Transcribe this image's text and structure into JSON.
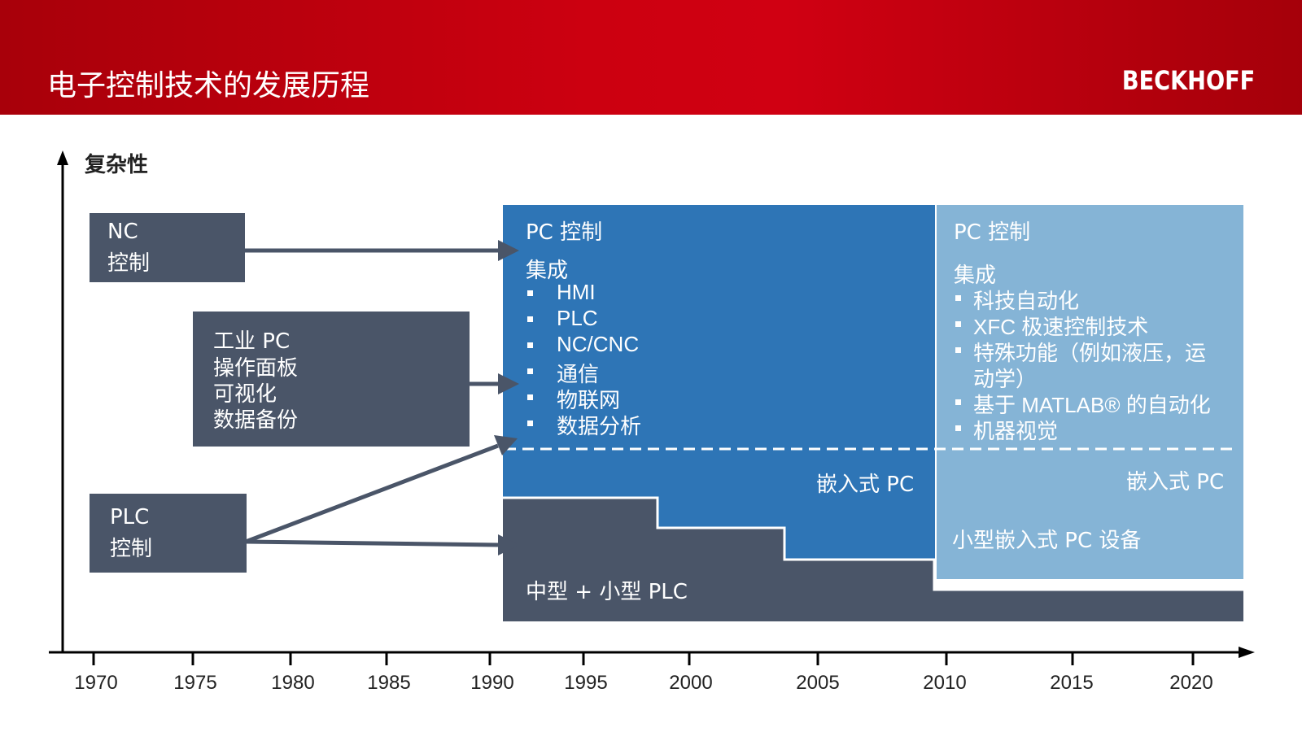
{
  "header": {
    "title": "电子控制技术的发展历程",
    "logo": "BECKHOFF"
  },
  "y_axis_label": "复杂性",
  "x_ticks": [
    "1970",
    "1975",
    "1980",
    "1985",
    "1990",
    "1995",
    "2000",
    "2005",
    "2010",
    "2015",
    "2020"
  ],
  "left_boxes": {
    "nc": [
      "NC",
      "控制"
    ],
    "ipc": [
      "工业 PC",
      "操作面板",
      "可视化",
      "数据备份"
    ],
    "plc": [
      "PLC",
      "控制"
    ]
  },
  "pc_1990": {
    "title": "PC 控制",
    "integration": "集成",
    "items": [
      "HMI",
      "PLC",
      "NC/CNC",
      "通信",
      "物联网",
      "数据分析"
    ],
    "embedded": "嵌入式 PC"
  },
  "pc_2010": {
    "title": "PC 控制",
    "integration": "集成",
    "items": [
      "科技自动化",
      "XFC 极速控制技术",
      "特殊功能（例如液压，运",
      "动学）",
      "基于 MATLAB® 的自动化",
      "机器视觉"
    ],
    "embedded": "嵌入式 PC",
    "small_embedded": "小型嵌入式 PC 设备"
  },
  "plc_band": "中型 + 小型 PLC",
  "colors": {
    "header_red": "#c8000f",
    "dark_slate": "#4a5568",
    "blue": "#2e75b6",
    "light_blue": "#85b4d6"
  }
}
